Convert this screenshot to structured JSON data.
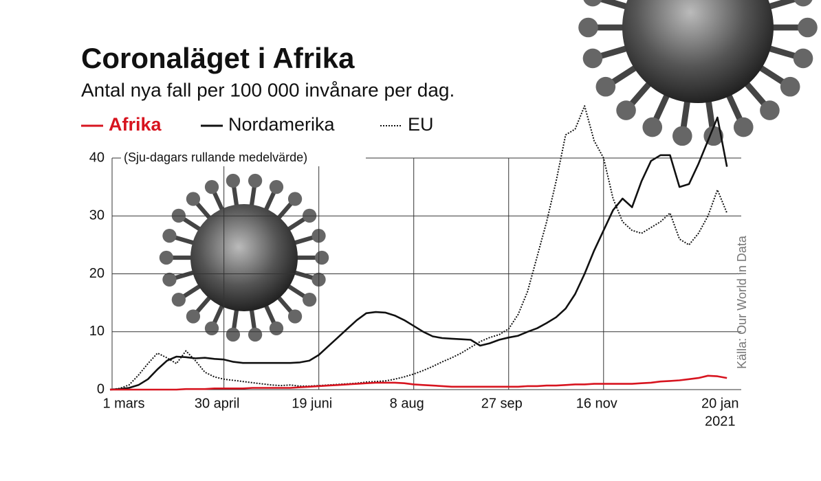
{
  "chart_data": {
    "type": "line",
    "title": "Coronaläget i Afrika",
    "subtitle": "Antal nya fall per 100 000 invånare per dag.",
    "note": "(Sju-dagars rullande medelvärde)",
    "source": "Källa: Our World in Data",
    "year_label": "2021",
    "x": [
      0,
      5,
      10,
      15,
      20,
      25,
      30,
      35,
      40,
      45,
      50,
      55,
      60,
      65,
      70,
      75,
      80,
      85,
      90,
      95,
      100,
      105,
      110,
      115,
      120,
      125,
      130,
      135,
      140,
      145,
      150,
      155,
      160,
      165,
      170,
      175,
      180,
      185,
      190,
      195,
      200,
      205,
      210,
      215,
      220,
      225,
      230,
      235,
      240,
      245,
      250,
      255,
      260,
      265,
      270,
      275,
      280,
      285,
      290,
      295,
      300,
      305,
      310,
      315,
      320,
      325
    ],
    "xlim": [
      0,
      326
    ],
    "xticks": [
      {
        "value": 0,
        "label": "1 mars"
      },
      {
        "value": 60,
        "label": "30 april"
      },
      {
        "value": 110,
        "label": "19 juni"
      },
      {
        "value": 160,
        "label": "8 aug"
      },
      {
        "value": 210,
        "label": "27 sep"
      },
      {
        "value": 260,
        "label": "16 nov"
      },
      {
        "value": 325,
        "label": "20 jan"
      }
    ],
    "ylim": [
      0,
      40
    ],
    "yticks": [
      0,
      10,
      20,
      30,
      40
    ],
    "grid": true,
    "series": [
      {
        "name": "Afrika",
        "color": "#d7141f",
        "style": "solid",
        "values": [
          0,
          0,
          0,
          0,
          0,
          0,
          0,
          0,
          0.1,
          0.1,
          0.1,
          0.2,
          0.2,
          0.2,
          0.2,
          0.3,
          0.3,
          0.3,
          0.3,
          0.3,
          0.4,
          0.5,
          0.6,
          0.7,
          0.8,
          0.9,
          1,
          1.1,
          1.2,
          1.2,
          1.2,
          1.1,
          0.9,
          0.8,
          0.7,
          0.6,
          0.5,
          0.5,
          0.5,
          0.5,
          0.5,
          0.5,
          0.5,
          0.5,
          0.6,
          0.6,
          0.7,
          0.7,
          0.8,
          0.9,
          0.9,
          1,
          1,
          1,
          1,
          1,
          1.1,
          1.2,
          1.4,
          1.5,
          1.6,
          1.8,
          2,
          2.4,
          2.3,
          2.0
        ]
      },
      {
        "name": "Nordamerika",
        "color": "#111111",
        "style": "solid",
        "values": [
          0,
          0.1,
          0.3,
          0.8,
          1.8,
          3.5,
          5,
          5.7,
          5.6,
          5.4,
          5.5,
          5.3,
          5.2,
          4.8,
          4.6,
          4.6,
          4.6,
          4.6,
          4.6,
          4.6,
          4.7,
          5,
          6,
          7.5,
          9,
          10.5,
          12,
          13.2,
          13.4,
          13.3,
          12.8,
          12,
          11,
          10,
          9.2,
          8.9,
          8.8,
          8.7,
          8.6,
          7.6,
          8,
          8.6,
          9,
          9.3,
          10,
          10.6,
          11.5,
          12.5,
          14,
          16.5,
          20,
          24,
          27.5,
          31,
          33,
          31.5,
          36,
          39.5,
          40.5,
          40.5,
          35,
          35.5,
          39,
          43,
          47,
          38.5
        ]
      },
      {
        "name": "EU",
        "color": "#111111",
        "style": "dotted",
        "values": [
          0,
          0.2,
          0.8,
          2.5,
          4.5,
          6.3,
          5.5,
          4.5,
          6.7,
          5,
          3,
          2.2,
          1.8,
          1.6,
          1.4,
          1.2,
          1,
          0.8,
          0.7,
          0.8,
          0.6,
          0.6,
          0.7,
          0.8,
          0.9,
          1,
          1.1,
          1.3,
          1.4,
          1.5,
          1.8,
          2.2,
          2.7,
          3.3,
          4,
          4.8,
          5.5,
          6.3,
          7.3,
          8.3,
          9,
          9.5,
          10.5,
          13,
          17,
          23,
          29,
          36,
          44,
          45,
          49,
          43,
          40,
          33,
          29,
          27.5,
          27,
          28,
          29,
          30.5,
          26,
          25,
          27,
          30,
          34.5,
          30.5
        ]
      }
    ]
  }
}
